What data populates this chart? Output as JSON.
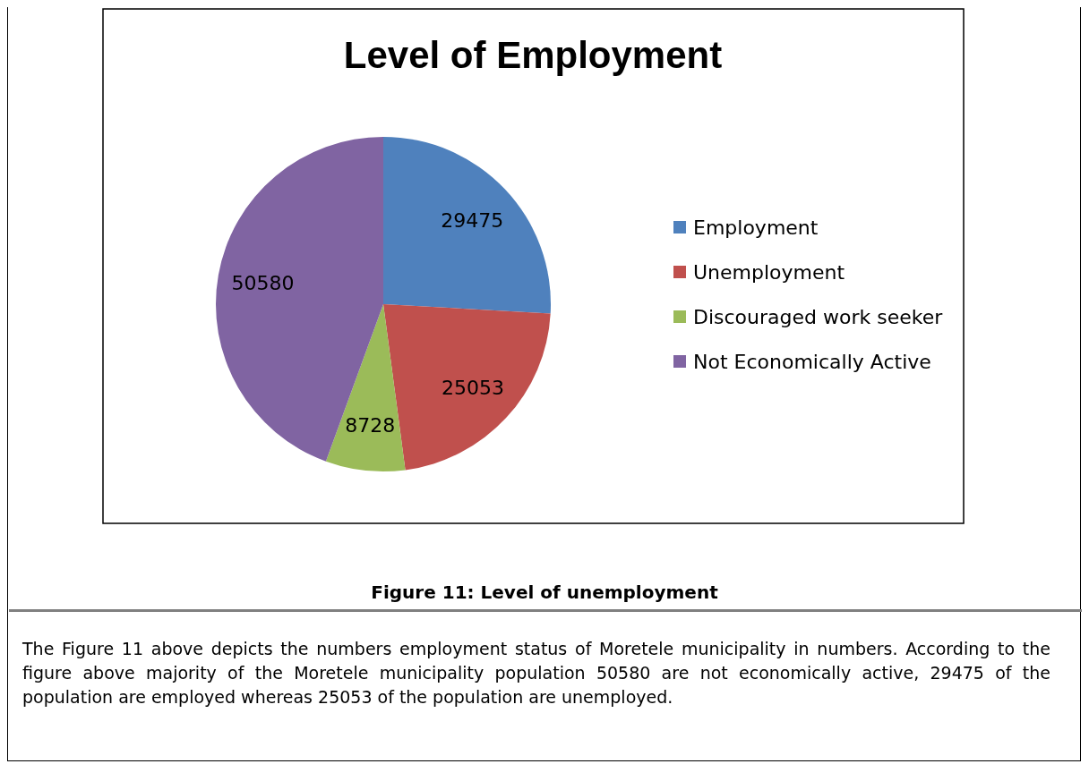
{
  "chart_data": {
    "type": "pie",
    "title": "Level of Employment",
    "categories": [
      "Employment",
      "Unemployment",
      "Discouraged work seeker",
      "Not Economically Active"
    ],
    "values": [
      29475,
      25053,
      8728,
      50580
    ],
    "colors": [
      "#4f81bd",
      "#c0504d",
      "#9bbb59",
      "#8064a2"
    ],
    "data_labels": true,
    "legend": "right",
    "annotations": [
      "Figure 11:  Level of unemployment",
      "The Figure 11 above depicts the numbers employment status of Moretele municipality in numbers. According to the figure above majority of the Moretele municipality population 50580 are not economically active, 29475 of the population are employed whereas 25053 of the population are unemployed."
    ]
  }
}
